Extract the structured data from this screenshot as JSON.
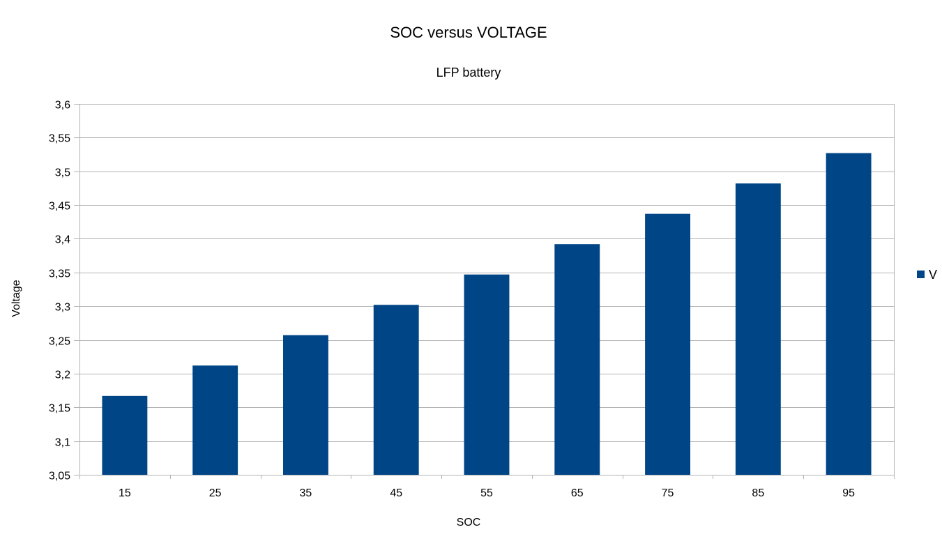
{
  "chart_data": {
    "type": "bar",
    "title": "SOC versus VOLTAGE",
    "subtitle": "LFP battery",
    "xlabel": "SOC",
    "ylabel": "Voltage",
    "categories": [
      "15",
      "25",
      "35",
      "45",
      "55",
      "65",
      "75",
      "85",
      "95"
    ],
    "series": [
      {
        "name": "V",
        "color": "#004586",
        "values": [
          3.167,
          3.212,
          3.257,
          3.302,
          3.347,
          3.392,
          3.437,
          3.482,
          3.527
        ]
      }
    ],
    "ylim": [
      3.05,
      3.6
    ],
    "yticks": [
      "3,05",
      "3,1",
      "3,15",
      "3,2",
      "3,25",
      "3,3",
      "3,35",
      "3,4",
      "3,45",
      "3,5",
      "3,55",
      "3,6"
    ],
    "grid": true,
    "legend_position": "right"
  }
}
